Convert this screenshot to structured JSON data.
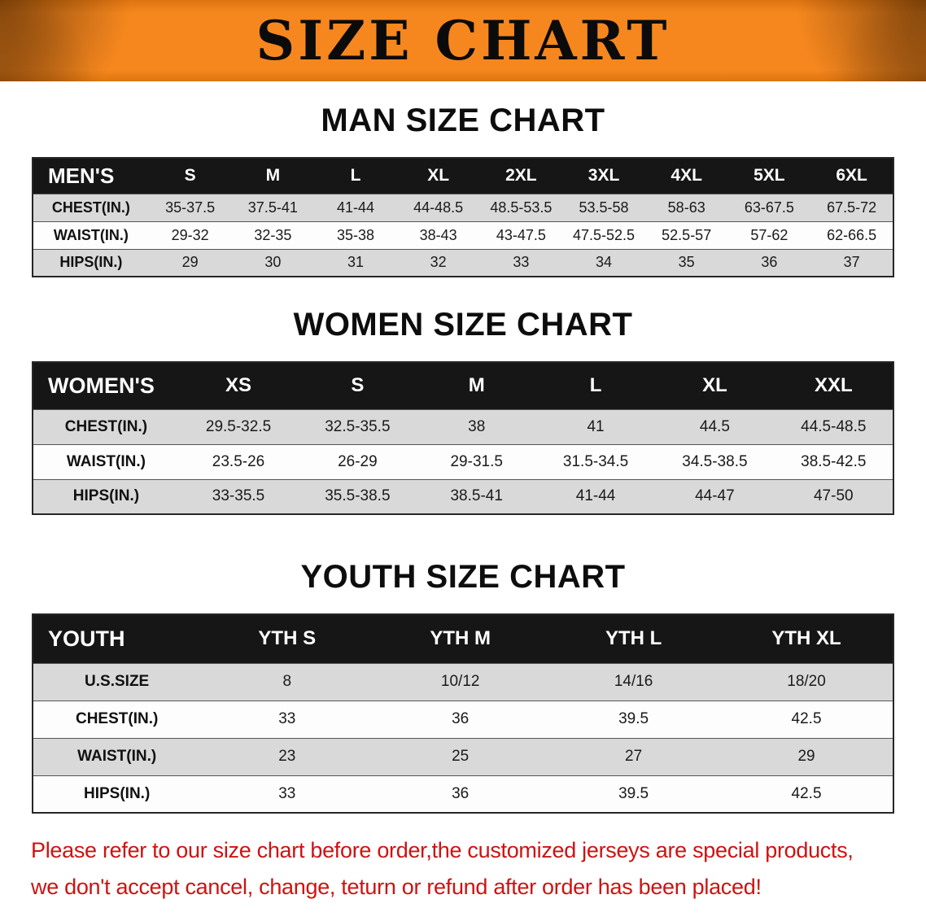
{
  "banner": {
    "title": "SIZE CHART"
  },
  "colors": {
    "banner_bg": "#f6871e",
    "table_header_bg": "#161616",
    "row_shaded": "#d9d9d9",
    "row_plain": "#fdfdfd",
    "notice_text": "#ce1212"
  },
  "sections": [
    {
      "heading": "MAN SIZE CHART",
      "table": {
        "name": "mens",
        "columns": [
          "MEN'S",
          "S",
          "M",
          "L",
          "XL",
          "2XL",
          "3XL",
          "4XL",
          "5XL",
          "6XL"
        ],
        "rows": [
          {
            "label": "CHEST(IN.)",
            "values": [
              "35-37.5",
              "37.5-41",
              "41-44",
              "44-48.5",
              "48.5-53.5",
              "53.5-58",
              "58-63",
              "63-67.5",
              "67.5-72"
            ]
          },
          {
            "label": "WAIST(IN.)",
            "values": [
              "29-32",
              "32-35",
              "35-38",
              "38-43",
              "43-47.5",
              "47.5-52.5",
              "52.5-57",
              "57-62",
              "62-66.5"
            ]
          },
          {
            "label": "HIPS(IN.)",
            "values": [
              "29",
              "30",
              "31",
              "32",
              "33",
              "34",
              "35",
              "36",
              "37"
            ]
          }
        ]
      }
    },
    {
      "heading": "WOMEN SIZE CHART",
      "table": {
        "name": "womens",
        "columns": [
          "WOMEN'S",
          "XS",
          "S",
          "M",
          "L",
          "XL",
          "XXL"
        ],
        "rows": [
          {
            "label": "CHEST(IN.)",
            "values": [
              "29.5-32.5",
              "32.5-35.5",
              "38",
              "41",
              "44.5",
              "44.5-48.5"
            ]
          },
          {
            "label": "WAIST(IN.)",
            "values": [
              "23.5-26",
              "26-29",
              "29-31.5",
              "31.5-34.5",
              "34.5-38.5",
              "38.5-42.5"
            ]
          },
          {
            "label": "HIPS(IN.)",
            "values": [
              "33-35.5",
              "35.5-38.5",
              "38.5-41",
              "41-44",
              "44-47",
              "47-50"
            ]
          }
        ]
      }
    },
    {
      "heading": "YOUTH SIZE CHART",
      "table": {
        "name": "youth",
        "columns": [
          "YOUTH",
          "YTH S",
          "YTH M",
          "YTH L",
          "YTH XL"
        ],
        "rows": [
          {
            "label": "U.S.SIZE",
            "values": [
              "8",
              "10/12",
              "14/16",
              "18/20"
            ]
          },
          {
            "label": "CHEST(IN.)",
            "values": [
              "33",
              "36",
              "39.5",
              "42.5"
            ]
          },
          {
            "label": "WAIST(IN.)",
            "values": [
              "23",
              "25",
              "27",
              "29"
            ]
          },
          {
            "label": "HIPS(IN.)",
            "values": [
              "33",
              "36",
              "39.5",
              "42.5"
            ]
          }
        ]
      }
    }
  ],
  "notice": {
    "line1": "Please refer to our size chart before order,the customized jerseys are special products,",
    "line2": "we don't accept cancel, change, teturn or refund after order has been placed!"
  }
}
